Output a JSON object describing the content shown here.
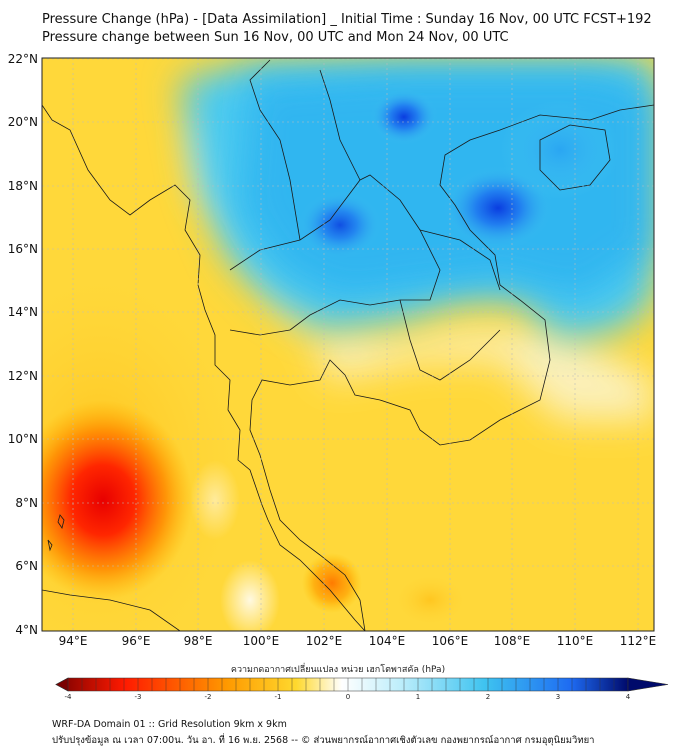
{
  "title": {
    "line1": "Pressure Change (hPa) - [Data Assimilation] _ Initial Time : Sunday 16 Nov, 00 UTC FCST+192",
    "line2": "Pressure change between Sun 16 Nov, 00 UTC and Mon 24 Nov, 00 UTC"
  },
  "map": {
    "lon_range": [
      93,
      112.5
    ],
    "lat_range": [
      4,
      22.2
    ],
    "lat_labels": [
      "22°N",
      "20°N",
      "18°N",
      "16°N",
      "14°N",
      "12°N",
      "10°N",
      "8°N",
      "6°N",
      "4°N"
    ],
    "lon_labels": [
      "94°E",
      "96°E",
      "98°E",
      "100°E",
      "102°E",
      "104°E",
      "106°E",
      "108°E",
      "110°E",
      "112°E"
    ],
    "features": [
      {
        "name": "strong-rise-center",
        "lon": 95.1,
        "lat": 8.1,
        "value": -3.2
      },
      {
        "name": "rise-southern-gulf",
        "lon": 102.2,
        "lat": 5.5,
        "value": -2.2
      },
      {
        "name": "fall-northern-vietnam",
        "lon": 107.3,
        "lat": 17.3,
        "value": 3.2
      },
      {
        "name": "fall-northern-laos",
        "lon": 104.1,
        "lat": 20.2,
        "value": 3.0
      },
      {
        "name": "fall-northeast-thailand",
        "lon": 102.3,
        "lat": 17.0,
        "value": 2.6
      }
    ]
  },
  "colorbar": {
    "title": "ความกดอากาศเปลี่ยนแปลง หน่วย เฮกโตพาสคัล (hPa)",
    "range": [
      -4,
      4
    ],
    "ticks": [
      "-4",
      "-3",
      "-2",
      "-1",
      "0",
      "1",
      "2",
      "3",
      "4"
    ],
    "colors": {
      "neg_extreme": "#7a0000",
      "neg_strong": "#ff1a00",
      "neg_mid": "#ff9a00",
      "neg_weak": "#ffd92e",
      "neutral": "#ffffff",
      "pos_weak": "#bfeefb",
      "pos_mid": "#3ec3f0",
      "pos_strong": "#1e6bf2",
      "pos_extreme": "#000a6b"
    }
  },
  "footer": {
    "line1": "WRF-DA Domain 01 :: Grid Resolution 9km x 9km",
    "line2": "ปรับปรุงข้อมูล ณ เวลา 07:00น. วัน อา. ที่ 16 พ.ย. 2568 -- © ส่วนพยากรณ์อากาศเชิงตัวเลข กองพยากรณ์อากาศ กรมอุตุนิยมวิทยา"
  }
}
